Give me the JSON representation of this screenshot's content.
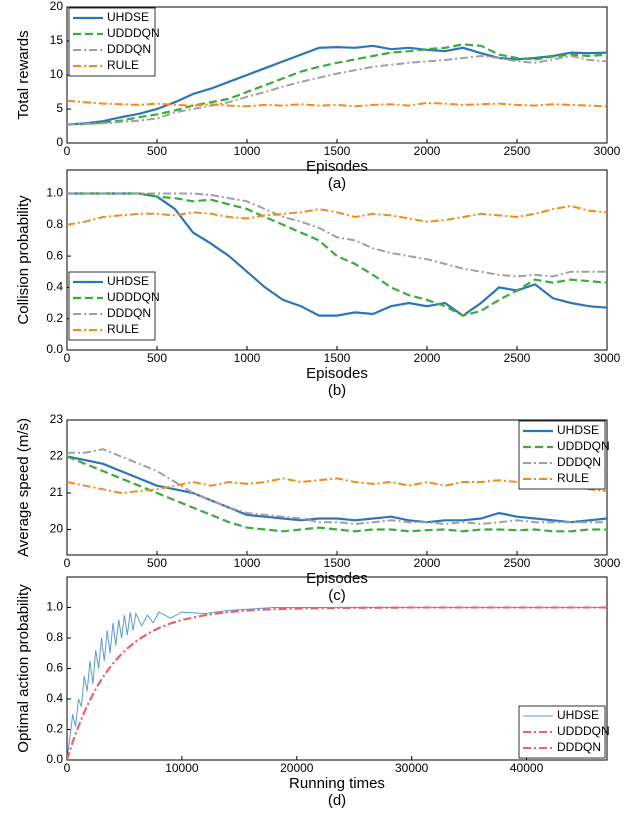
{
  "chart_data": [
    {
      "type": "line",
      "caption": "(a)",
      "xlabel": "Episodes",
      "ylabel": "Total rewards",
      "x": [
        0,
        100,
        200,
        300,
        400,
        500,
        600,
        700,
        800,
        900,
        1000,
        1100,
        1200,
        1300,
        1400,
        1500,
        1600,
        1700,
        1800,
        1900,
        2000,
        2100,
        2200,
        2300,
        2400,
        2500,
        2600,
        2700,
        2800,
        2900,
        3000
      ],
      "xlim": [
        0,
        3000
      ],
      "xticks": [
        0,
        500,
        1000,
        1500,
        2000,
        2500,
        3000
      ],
      "ylim": [
        0,
        20
      ],
      "yticks": [
        0,
        5,
        10,
        15,
        20
      ],
      "legend": "upper left",
      "series": [
        {
          "name": "UHDSE",
          "color": "#2e75b6",
          "linestyle": "solid",
          "values": [
            2.7,
            2.9,
            3.2,
            3.8,
            4.3,
            5,
            6,
            7.2,
            8,
            9,
            10,
            11,
            12,
            13,
            14,
            14.1,
            14,
            14.3,
            13.8,
            14,
            13.7,
            13.5,
            14,
            13.2,
            12.5,
            12.3,
            12.5,
            12.8,
            13.3,
            13.2,
            13.3
          ]
        },
        {
          "name": "UDDDQN",
          "color": "#3cab3a",
          "linestyle": "dashed",
          "values": [
            2.7,
            2.8,
            3,
            3.3,
            3.8,
            4.2,
            4.8,
            5.5,
            6,
            6.5,
            7.5,
            8.5,
            9.5,
            10.5,
            11.2,
            11.8,
            12.3,
            12.8,
            13.3,
            13.5,
            13.8,
            14,
            14.5,
            14.3,
            13,
            12.5,
            12.3,
            12.7,
            13,
            12.8,
            13
          ]
        },
        {
          "name": "DDDQN",
          "color": "#a0a0a0",
          "linestyle": "dashdot",
          "values": [
            2.7,
            2.8,
            2.9,
            3.1,
            3.3,
            3.6,
            4.5,
            5,
            5.5,
            6,
            6.8,
            7.5,
            8.3,
            9,
            9.6,
            10.2,
            10.7,
            11.2,
            11.5,
            11.8,
            12,
            12.2,
            12.5,
            12.8,
            12.5,
            12,
            11.8,
            12.3,
            12.8,
            12.2,
            12
          ]
        },
        {
          "name": "RULE",
          "color": "#f28b1c",
          "linestyle": "dashdot",
          "values": [
            6.2,
            6,
            5.8,
            5.7,
            5.6,
            5.8,
            5.6,
            5.5,
            5.7,
            5.5,
            5.4,
            5.6,
            5.5,
            5.7,
            5.5,
            5.6,
            5.4,
            5.6,
            5.7,
            5.5,
            5.9,
            5.8,
            5.6,
            5.7,
            5.8,
            5.6,
            5.5,
            5.7,
            5.6,
            5.5,
            5.4
          ]
        }
      ]
    },
    {
      "type": "line",
      "caption": "(b)",
      "xlabel": "Episodes",
      "ylabel": "Collision probability",
      "x": [
        0,
        100,
        200,
        300,
        400,
        500,
        600,
        700,
        800,
        900,
        1000,
        1100,
        1200,
        1300,
        1400,
        1500,
        1600,
        1700,
        1800,
        1900,
        2000,
        2100,
        2200,
        2300,
        2400,
        2500,
        2600,
        2700,
        2800,
        2900,
        3000
      ],
      "xlim": [
        0,
        3000
      ],
      "xticks": [
        0,
        500,
        1000,
        1500,
        2000,
        2500,
        3000
      ],
      "ylim": [
        0,
        1.15
      ],
      "yticks": [
        {
          "value": 0,
          "label": "0.0"
        },
        0.2,
        0.4,
        0.6,
        0.8,
        {
          "value": 1,
          "label": "1.0"
        }
      ],
      "legend": "center left",
      "series": [
        {
          "name": "UHDSE",
          "color": "#2e75b6",
          "linestyle": "solid",
          "values": [
            1,
            1,
            1,
            1,
            1,
            0.98,
            0.9,
            0.75,
            0.68,
            0.6,
            0.5,
            0.4,
            0.32,
            0.28,
            0.22,
            0.22,
            0.24,
            0.23,
            0.28,
            0.3,
            0.28,
            0.3,
            0.22,
            0.3,
            0.4,
            0.38,
            0.42,
            0.33,
            0.3,
            0.28,
            0.27
          ]
        },
        {
          "name": "UDDDQN",
          "color": "#3cab3a",
          "linestyle": "dashed",
          "values": [
            1,
            1,
            1,
            1,
            1,
            0.98,
            0.97,
            0.95,
            0.96,
            0.93,
            0.9,
            0.85,
            0.8,
            0.75,
            0.7,
            0.6,
            0.55,
            0.48,
            0.4,
            0.35,
            0.32,
            0.28,
            0.22,
            0.25,
            0.32,
            0.38,
            0.45,
            0.43,
            0.45,
            0.44,
            0.43
          ]
        },
        {
          "name": "DDDQN",
          "color": "#a0a0a0",
          "linestyle": "dashdot",
          "values": [
            1,
            1,
            1,
            1,
            1,
            1,
            1,
            1,
            0.99,
            0.97,
            0.95,
            0.9,
            0.85,
            0.82,
            0.78,
            0.72,
            0.7,
            0.65,
            0.62,
            0.6,
            0.58,
            0.55,
            0.52,
            0.5,
            0.48,
            0.47,
            0.48,
            0.47,
            0.5,
            0.5,
            0.5
          ]
        },
        {
          "name": "RULE",
          "color": "#f28b1c",
          "linestyle": "dashdot",
          "values": [
            0.8,
            0.82,
            0.85,
            0.86,
            0.87,
            0.87,
            0.86,
            0.88,
            0.87,
            0.85,
            0.84,
            0.86,
            0.87,
            0.88,
            0.9,
            0.88,
            0.85,
            0.87,
            0.86,
            0.84,
            0.82,
            0.83,
            0.85,
            0.87,
            0.86,
            0.85,
            0.87,
            0.9,
            0.92,
            0.89,
            0.88
          ]
        }
      ]
    },
    {
      "type": "line",
      "caption": "(c)",
      "xlabel": "Episodes",
      "ylabel": "Average speed (m/s)",
      "x": [
        0,
        100,
        200,
        300,
        400,
        500,
        600,
        700,
        800,
        900,
        1000,
        1100,
        1200,
        1300,
        1400,
        1500,
        1600,
        1700,
        1800,
        1900,
        2000,
        2100,
        2200,
        2300,
        2400,
        2500,
        2600,
        2700,
        2800,
        2900,
        3000
      ],
      "xlim": [
        0,
        3000
      ],
      "xticks": [
        0,
        500,
        1000,
        1500,
        2000,
        2500,
        3000
      ],
      "ylim": [
        19.3,
        23
      ],
      "yticks": [
        20,
        21,
        22,
        23
      ],
      "legend": "upper right",
      "series": [
        {
          "name": "UHDSE",
          "color": "#2e75b6",
          "linestyle": "solid",
          "values": [
            22,
            21.9,
            21.8,
            21.6,
            21.4,
            21.2,
            21.1,
            21,
            20.8,
            20.6,
            20.4,
            20.35,
            20.3,
            20.25,
            20.3,
            20.3,
            20.25,
            20.3,
            20.35,
            20.25,
            20.2,
            20.25,
            20.25,
            20.3,
            20.45,
            20.35,
            20.3,
            20.25,
            20.2,
            20.25,
            20.3
          ]
        },
        {
          "name": "UDDDQN",
          "color": "#3cab3a",
          "linestyle": "dashed",
          "values": [
            22,
            21.8,
            21.6,
            21.4,
            21.2,
            21,
            20.8,
            20.6,
            20.4,
            20.2,
            20.05,
            20,
            19.95,
            20,
            20.05,
            20,
            19.95,
            20,
            20,
            19.95,
            19.98,
            20,
            19.95,
            20,
            20,
            19.98,
            20,
            19.95,
            19.95,
            20,
            20
          ]
        },
        {
          "name": "DDDQN",
          "color": "#a0a0a0",
          "linestyle": "dashdot",
          "values": [
            22.1,
            22.1,
            22.2,
            22,
            21.8,
            21.6,
            21.3,
            21,
            20.8,
            20.6,
            20.45,
            20.4,
            20.35,
            20.3,
            20.2,
            20.2,
            20.15,
            20.2,
            20.25,
            20.2,
            20.2,
            20.15,
            20.2,
            20.15,
            20.2,
            20.25,
            20.2,
            20.2,
            20.2,
            20.2,
            20.2
          ]
        },
        {
          "name": "RULE",
          "color": "#f28b1c",
          "linestyle": "dashdot",
          "values": [
            21.3,
            21.2,
            21.1,
            21,
            21.05,
            21.1,
            21.2,
            21.3,
            21.2,
            21.3,
            21.25,
            21.3,
            21.4,
            21.3,
            21.35,
            21.4,
            21.3,
            21.25,
            21.3,
            21.2,
            21.3,
            21.2,
            21.3,
            21.3,
            21.35,
            21.3,
            21.2,
            21.3,
            21.2,
            21.1,
            21.05
          ]
        }
      ]
    },
    {
      "type": "line",
      "caption": "(d)",
      "xlabel": "Running times",
      "ylabel": "Optimal action probability",
      "x": [
        0,
        250,
        500,
        750,
        1000,
        1250,
        1500,
        1750,
        2000,
        2250,
        2500,
        2750,
        3000,
        3250,
        3500,
        3750,
        4000,
        4250,
        4500,
        4750,
        5000,
        5250,
        5500,
        5750,
        6000,
        6500,
        7000,
        7500,
        8000,
        9000,
        10000,
        12000,
        14000,
        16000,
        18000,
        20000,
        25000,
        30000,
        35000,
        40000,
        47000
      ],
      "xlim": [
        0,
        47000
      ],
      "xticks": [
        0,
        10000,
        20000,
        30000,
        40000
      ],
      "ylim": [
        0,
        1.2
      ],
      "yticks": [
        {
          "value": 0,
          "label": "0.0"
        },
        0.2,
        0.4,
        0.6,
        0.8,
        {
          "value": 1,
          "label": "1.0"
        }
      ],
      "legend": "lower right",
      "series": [
        {
          "name": "UHDSE",
          "color": "#5b9bd5",
          "linestyle": "thin",
          "values": [
            0,
            0.15,
            0.3,
            0.22,
            0.4,
            0.35,
            0.55,
            0.45,
            0.65,
            0.5,
            0.72,
            0.6,
            0.8,
            0.65,
            0.85,
            0.7,
            0.9,
            0.75,
            0.92,
            0.8,
            0.95,
            0.82,
            0.97,
            0.85,
            0.96,
            0.88,
            0.95,
            0.9,
            0.97,
            0.93,
            0.97,
            0.96,
            0.98,
            0.99,
            1,
            1,
            1,
            1,
            1,
            1,
            1
          ]
        },
        {
          "name": "UDDDQN",
          "color": "#e8616b",
          "linestyle": "dashdot",
          "values": [
            0,
            0.06,
            0.118,
            0.171,
            0.221,
            0.268,
            0.313,
            0.354,
            0.393,
            0.43,
            0.465,
            0.497,
            0.528,
            0.556,
            0.583,
            0.608,
            0.632,
            0.654,
            0.675,
            0.695,
            0.713,
            0.731,
            0.747,
            0.762,
            0.777,
            0.803,
            0.826,
            0.847,
            0.865,
            0.895,
            0.918,
            0.95,
            0.97,
            0.982,
            0.989,
            0.993,
            0.998,
            1,
            1,
            1,
            1
          ]
        },
        {
          "name": "DDDQN",
          "color": "#e8616b",
          "linestyle": "dashdot",
          "values": [
            0,
            0.06,
            0.118,
            0.171,
            0.221,
            0.268,
            0.313,
            0.354,
            0.393,
            0.43,
            0.465,
            0.497,
            0.528,
            0.556,
            0.583,
            0.608,
            0.632,
            0.654,
            0.675,
            0.695,
            0.713,
            0.731,
            0.747,
            0.762,
            0.777,
            0.803,
            0.826,
            0.847,
            0.865,
            0.895,
            0.918,
            0.95,
            0.97,
            0.982,
            0.989,
            0.993,
            0.998,
            1,
            1,
            1,
            1
          ]
        }
      ]
    }
  ]
}
